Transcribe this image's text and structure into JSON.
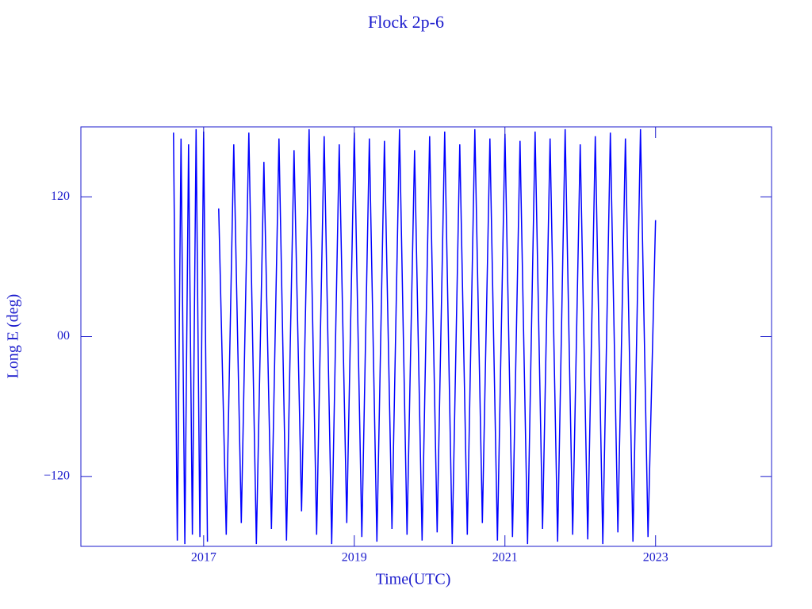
{
  "chart_data": {
    "type": "line",
    "title": "Flock 2p-6",
    "xlabel": "Time(UTC)",
    "ylabel": "Long E (deg)",
    "xlim": [
      2015.37,
      2024.54
    ],
    "xticks": [
      2017,
      2019,
      2021,
      2023
    ],
    "ylim": [
      -180,
      180
    ],
    "yticks": [
      {
        "value": -120,
        "label": "−120"
      },
      {
        "value": 0,
        "label": "00"
      },
      {
        "value": 120,
        "label": "120"
      }
    ],
    "x": [
      2016.6,
      2016.65,
      2016.7,
      2016.75,
      2016.8,
      2016.85,
      2016.9,
      2016.95,
      2017.0,
      2017.05,
      2017.12,
      2017.2,
      2017.3,
      2017.4,
      2017.5,
      2017.6,
      2017.7,
      2017.8,
      2017.9,
      2018.0,
      2018.1,
      2018.2,
      2018.3,
      2018.4,
      2018.5,
      2018.6,
      2018.7,
      2018.8,
      2018.9,
      2019.0,
      2019.1,
      2019.2,
      2019.3,
      2019.4,
      2019.5,
      2019.6,
      2019.7,
      2019.8,
      2019.9,
      2020.0,
      2020.1,
      2020.2,
      2020.3,
      2020.4,
      2020.5,
      2020.6,
      2020.7,
      2020.8,
      2020.9,
      2021.0,
      2021.1,
      2021.2,
      2021.3,
      2021.4,
      2021.5,
      2021.6,
      2021.7,
      2021.8,
      2021.9,
      2022.0,
      2022.1,
      2022.2,
      2022.3,
      2022.4,
      2022.5,
      2022.6,
      2022.7,
      2022.8,
      2022.9,
      2023.0
    ],
    "series": [
      {
        "color": "#0000ff",
        "values": [
          175,
          -175,
          170,
          -178,
          165,
          -170,
          178,
          -172,
          176,
          -176,
          null,
          110,
          -170,
          165,
          -160,
          175,
          -178,
          150,
          -165,
          170,
          -175,
          160,
          -150,
          178,
          -170,
          172,
          -178,
          165,
          -160,
          175,
          -172,
          170,
          -176,
          168,
          -165,
          178,
          -170,
          160,
          -175,
          172,
          -168,
          176,
          -178,
          165,
          -170,
          178,
          -160,
          170,
          -175,
          174,
          -172,
          168,
          -178,
          176,
          -165,
          170,
          -176,
          178,
          -170,
          165,
          -174,
          172,
          -178,
          175,
          -168,
          170,
          -176,
          178,
          -172,
          100
        ]
      }
    ]
  }
}
